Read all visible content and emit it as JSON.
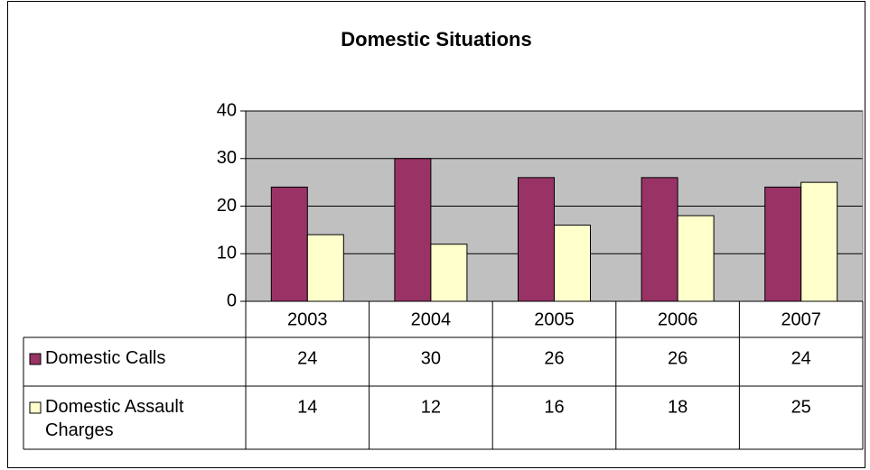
{
  "chart_data": {
    "type": "bar",
    "title": "Domestic Situations",
    "categories": [
      "2003",
      "2004",
      "2005",
      "2006",
      "2007"
    ],
    "series": [
      {
        "name": "Domestic Calls",
        "color": "#993366",
        "values": [
          24,
          30,
          26,
          26,
          24
        ]
      },
      {
        "name": "Domestic Assault Charges",
        "color": "#ffffcc",
        "values": [
          14,
          12,
          16,
          18,
          25
        ]
      }
    ],
    "ylim": [
      0,
      40
    ],
    "yticks": [
      0,
      10,
      20,
      30,
      40
    ],
    "grid": true,
    "data_table": true
  }
}
